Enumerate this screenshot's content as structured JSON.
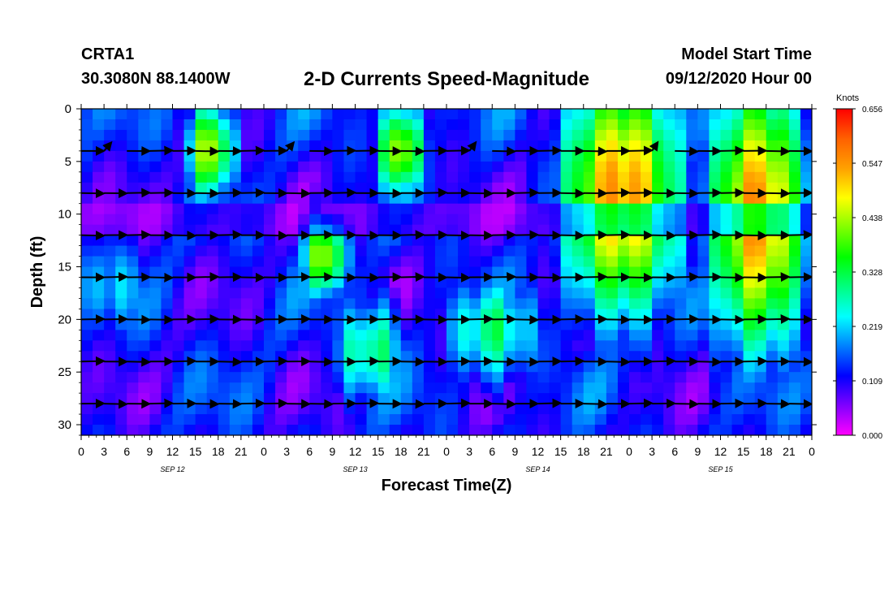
{
  "header": {
    "station": "CRTA1",
    "location": "30.3080N 88.1400W",
    "title": "2-D Currents Speed-Magnitude",
    "model_start_label": "Model Start Time",
    "model_start_value": "09/12/2020 Hour 00"
  },
  "chart_data": {
    "type": "heatmap",
    "title": "2-D Currents Speed-Magnitude",
    "xlabel": "Forecast Time(Z)",
    "ylabel": "Depth (ft)",
    "x_unit": "hours from 09/12/2020 00Z",
    "xlim": [
      0,
      96
    ],
    "ylim": [
      0,
      31
    ],
    "y_inverted": true,
    "x_tick_labels": [
      "0",
      "3",
      "6",
      "9",
      "12",
      "15",
      "18",
      "21",
      "0",
      "3",
      "6",
      "9",
      "12",
      "15",
      "18",
      "21",
      "0",
      "3",
      "6",
      "9",
      "12",
      "15",
      "18",
      "21",
      "0",
      "3",
      "6",
      "9",
      "12",
      "15",
      "18",
      "21",
      "0"
    ],
    "y_ticks": [
      0,
      5,
      10,
      15,
      20,
      25,
      30
    ],
    "date_labels": [
      {
        "hour": 12,
        "label": "SEP 12"
      },
      {
        "hour": 36,
        "label": "SEP 13"
      },
      {
        "hour": 60,
        "label": "SEP 14"
      },
      {
        "hour": 84,
        "label": "SEP 15"
      }
    ],
    "colorbar": {
      "label": "Knots",
      "min": 0.0,
      "max": 0.656,
      "tick_labels": [
        "0.000",
        "0.109",
        "0.219",
        "0.328",
        "0.438",
        "0.547",
        "0.656"
      ],
      "colors": [
        "#ff00ff",
        "#8000ff",
        "#0000ff",
        "#0080ff",
        "#00ffff",
        "#00ff80",
        "#00ff00",
        "#80ff00",
        "#ffff00",
        "#ffa000",
        "#ff6000",
        "#ff0000"
      ]
    },
    "vector_depths_ft": [
      4,
      8,
      12,
      16,
      20,
      24,
      28
    ],
    "speed_features": [
      {
        "hour": 17,
        "depth": 4,
        "speed": 0.45,
        "sigma_hours": 2.4,
        "sigma_depth": 3.5
      },
      {
        "hour": 42,
        "depth": 4,
        "speed": 0.45,
        "sigma_hours": 2.4,
        "sigma_depth": 3.5
      },
      {
        "hour": 71,
        "depth": 8,
        "speed": 0.55,
        "sigma_hours": 6,
        "sigma_depth": 9
      },
      {
        "hour": 89,
        "depth": 10,
        "speed": 0.55,
        "sigma_hours": 5,
        "sigma_depth": 10
      },
      {
        "hour": 32,
        "depth": 14,
        "speed": 0.45,
        "sigma_hours": 2.2,
        "sigma_depth": 3
      },
      {
        "hour": 4,
        "depth": 17,
        "speed": 0.22,
        "sigma_hours": 4,
        "sigma_depth": 4
      },
      {
        "hour": 54,
        "depth": 21,
        "speed": 0.3,
        "sigma_hours": 5,
        "sigma_depth": 4
      },
      {
        "hour": 38,
        "depth": 23,
        "speed": 0.3,
        "sigma_hours": 4,
        "sigma_depth": 4
      }
    ]
  }
}
